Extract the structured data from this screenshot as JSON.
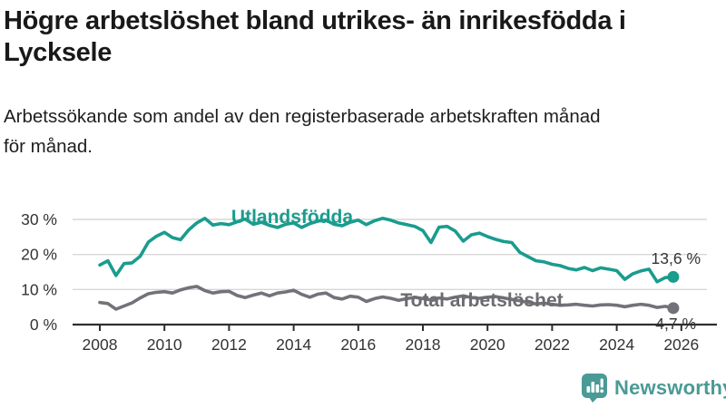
{
  "header": {
    "title_line1": "Högre arbetslöshet bland utrikes- än inrikesfödda i",
    "title_line2": "Lycksele",
    "subtitle_line1": "Arbetssökande som andel av den registerbaserade arbetskraften månad",
    "subtitle_line2": "för månad."
  },
  "chart_data": {
    "type": "line",
    "title": "Högre arbetslöshet bland utrikes- än inrikesfödda i Lycksele",
    "subtitle": "Arbetssökande som andel av den registerbaserade arbetskraften månad för månad.",
    "x_unit": "decimal_year",
    "x_start": 2008.0,
    "x_step": 0.25,
    "xlim": [
      2007.15,
      2027.1
    ],
    "ylim": [
      0,
      34
    ],
    "grid": "horizontal",
    "x_axis": {
      "ticks": [
        2008,
        2010,
        2012,
        2014,
        2016,
        2018,
        2020,
        2022,
        2024,
        2026
      ],
      "tick_labels": [
        "2008",
        "2010",
        "2012",
        "2014",
        "2016",
        "2018",
        "2020",
        "2022",
        "2024",
        "2026"
      ]
    },
    "y_axis": {
      "ticks": [
        0,
        10,
        20,
        30
      ],
      "tick_labels": [
        "0 %",
        "10 %",
        "20 %",
        "30 %"
      ]
    },
    "series": [
      {
        "name": "Utlandsfödda",
        "color": "#1a9c8e",
        "end_label": "13,6 %",
        "end_value": 13.6,
        "values": [
          17.0,
          18.2,
          14.0,
          17.4,
          17.6,
          19.5,
          23.5,
          25.2,
          26.3,
          24.8,
          24.2,
          27.0,
          29.0,
          30.3,
          28.4,
          28.8,
          28.5,
          29.3,
          30.1,
          28.6,
          29.2,
          28.3,
          27.7,
          28.6,
          29.0,
          27.7,
          28.8,
          29.5,
          29.8,
          28.6,
          28.2,
          29.2,
          29.8,
          28.5,
          29.6,
          30.3,
          29.8,
          29.0,
          28.5,
          28.0,
          26.8,
          23.4,
          27.8,
          28.0,
          26.7,
          23.8,
          25.6,
          26.1,
          25.1,
          24.3,
          23.7,
          23.4,
          20.6,
          19.4,
          18.2,
          17.9,
          17.2,
          16.8,
          16.0,
          15.6,
          16.3,
          15.4,
          16.2,
          15.8,
          15.4,
          12.9,
          14.5,
          15.3,
          15.8,
          12.2,
          13.4,
          13.6
        ]
      },
      {
        "name": "Total arbetslöshet",
        "color": "#757179",
        "end_label": "4,7 %",
        "end_value": 4.7,
        "values": [
          6.3,
          6.0,
          4.4,
          5.3,
          6.2,
          7.6,
          8.8,
          9.2,
          9.4,
          9.0,
          9.9,
          10.5,
          10.9,
          9.7,
          9.0,
          9.4,
          9.5,
          8.3,
          7.7,
          8.4,
          9.0,
          8.2,
          9.0,
          9.3,
          9.8,
          8.6,
          7.8,
          8.7,
          9.0,
          7.7,
          7.3,
          8.1,
          7.8,
          6.6,
          7.4,
          7.9,
          7.5,
          6.9,
          7.4,
          7.8,
          7.4,
          7.0,
          7.6,
          7.3,
          7.8,
          8.2,
          7.7,
          7.5,
          7.8,
          8.0,
          7.6,
          7.2,
          6.8,
          6.3,
          5.9,
          6.1,
          5.8,
          5.5,
          5.6,
          5.8,
          5.5,
          5.3,
          5.6,
          5.7,
          5.5,
          5.1,
          5.5,
          5.8,
          5.5,
          4.9,
          5.2,
          4.7
        ]
      }
    ],
    "colors": {
      "series_foreign_born": "#1a9c8e",
      "series_total": "#757179",
      "grid": "#d7d7d7",
      "axis": "#2e2e2e",
      "axis_text": "#333333",
      "brand_teal": "#4a9a96"
    }
  },
  "footer": {
    "brand": "Newsworthy"
  }
}
